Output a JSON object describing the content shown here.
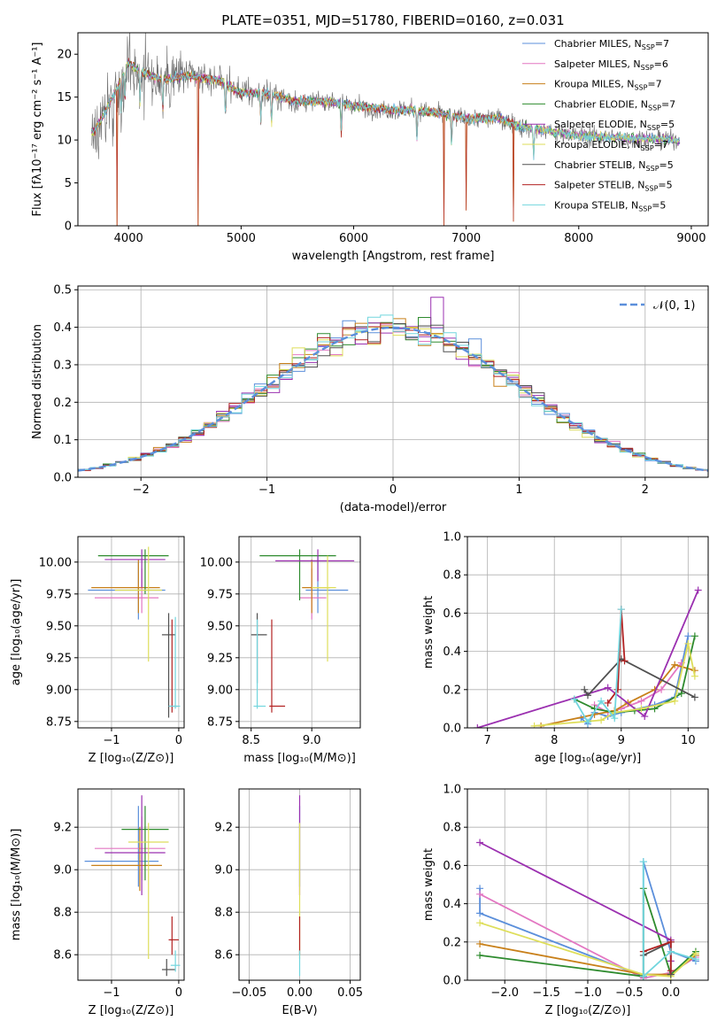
{
  "colors": {
    "series": [
      "#5b8fdb",
      "#e377c2",
      "#c8801a",
      "#2e8b2e",
      "#9b30b0",
      "#dede5a",
      "#505050",
      "#b22222",
      "#72d6de"
    ],
    "gaussian": "#5b8fdb"
  },
  "chart_data": [
    {
      "type": "line",
      "name": "spectrum",
      "title": "PLATE=0351, MJD=51780, FIBERID=0160, z=0.031",
      "xlabel": "wavelength [Angstrom, rest frame]",
      "ylabel": "Flux [fλ10⁻¹⁷ erg cm⁻² s⁻¹ A⁻¹]",
      "xlim": [
        3550,
        9150
      ],
      "ylim": [
        0,
        22.5
      ],
      "xticks": [
        4000,
        5000,
        6000,
        7000,
        8000,
        9000
      ],
      "yticks": [
        0,
        5,
        10,
        15,
        20
      ],
      "grid": false,
      "legend_position": "top-right",
      "legend": [
        {
          "label": "Chabrier MILES, N",
          "sub": "SSP",
          "suffix": "=7"
        },
        {
          "label": "Salpeter MILES, N",
          "sub": "SSP",
          "suffix": "=6"
        },
        {
          "label": "Kroupa MILES, N",
          "sub": "SSP",
          "suffix": "=7"
        },
        {
          "label": "Chabrier ELODIE, N",
          "sub": "SSP",
          "suffix": "=7"
        },
        {
          "label": "Salpeter ELODIE, N",
          "sub": "SSP",
          "suffix": "=5"
        },
        {
          "label": "Kroupa ELODIE, N",
          "sub": "SSP",
          "suffix": "=7"
        },
        {
          "label": "Chabrier STELIB, N",
          "sub": "SSP",
          "suffix": "=5"
        },
        {
          "label": "Salpeter STELIB, N",
          "sub": "SSP",
          "suffix": "=5"
        },
        {
          "label": "Kroupa STELIB, N",
          "sub": "SSP",
          "suffix": "=5"
        }
      ],
      "continuum": [
        [
          3700,
          11.0
        ],
        [
          3800,
          13.5
        ],
        [
          3900,
          16.0
        ],
        [
          4000,
          19.0
        ],
        [
          4100,
          18.0
        ],
        [
          4300,
          17.0
        ],
        [
          4500,
          17.5
        ],
        [
          4800,
          17.0
        ],
        [
          5000,
          15.5
        ],
        [
          5200,
          15.5
        ],
        [
          5500,
          14.5
        ],
        [
          5800,
          14.5
        ],
        [
          6000,
          14.0
        ],
        [
          6300,
          13.5
        ],
        [
          6560,
          13.5
        ],
        [
          6800,
          13.0
        ],
        [
          7000,
          12.5
        ],
        [
          7300,
          12.5
        ],
        [
          7500,
          11.5
        ],
        [
          8000,
          10.5
        ],
        [
          8500,
          10.2
        ],
        [
          8900,
          10.0
        ]
      ],
      "absorption_features": [
        3934,
        3968,
        4102,
        4304,
        4861,
        5175,
        5270,
        5890,
        6563,
        6870,
        7600
      ],
      "deep_drops": [
        [
          3900,
          0
        ],
        [
          4620,
          0
        ],
        [
          6800,
          0
        ],
        [
          7000,
          1.8
        ],
        [
          7420,
          0.5
        ]
      ]
    },
    {
      "type": "histogram",
      "name": "residuals",
      "xlabel": "(data-model)/error",
      "ylabel": "Normed distribution",
      "xlim": [
        -2.5,
        2.5
      ],
      "ylim": [
        0,
        0.51
      ],
      "xticks": [
        -2,
        -1,
        0,
        1,
        2
      ],
      "yticks": [
        0.0,
        0.1,
        0.2,
        0.3,
        0.4,
        0.5
      ],
      "grid": true,
      "legend_position": "top-right",
      "gaussian_label": "𝒩(0, 1)",
      "bin_width": 0.1,
      "bins_start": -2.5
    },
    {
      "type": "scatter",
      "name": "age-vs-Z",
      "xlabel": "Z [log₁₀(Z/Z⊙)]",
      "ylabel": "age  [log₁₀(age/yr)]",
      "xlim": [
        -1.5,
        0.08
      ],
      "ylim": [
        8.7,
        10.2
      ],
      "xticks": [
        -1,
        0
      ],
      "yticks": [
        8.75,
        9.0,
        9.25,
        9.5,
        9.75,
        10.0
      ],
      "grid": true,
      "points": [
        {
          "s": 0,
          "x": -0.6,
          "y": 9.78,
          "xe": [
            -1.35,
            -0.2
          ],
          "ye": [
            9.55,
            10.0
          ]
        },
        {
          "s": 1,
          "x": -0.55,
          "y": 9.72,
          "xe": [
            -1.25,
            -0.3
          ],
          "ye": [
            9.6,
            9.95
          ]
        },
        {
          "s": 2,
          "x": -0.6,
          "y": 9.8,
          "xe": [
            -1.3,
            -0.28
          ],
          "ye": [
            9.6,
            10.02
          ]
        },
        {
          "s": 3,
          "x": -0.5,
          "y": 10.05,
          "xe": [
            -1.2,
            -0.15
          ],
          "ye": [
            9.75,
            10.1
          ]
        },
        {
          "s": 4,
          "x": -0.55,
          "y": 10.02,
          "xe": [
            -1.1,
            -0.2
          ],
          "ye": [
            9.8,
            10.1
          ]
        },
        {
          "s": 5,
          "x": -0.45,
          "y": 9.78,
          "xe": [
            -0.95,
            -0.25
          ],
          "ye": [
            9.22,
            10.12
          ]
        },
        {
          "s": 6,
          "x": -0.15,
          "y": 9.43,
          "xe": [
            -0.25,
            -0.05
          ],
          "ye": [
            8.78,
            9.6
          ]
        },
        {
          "s": 7,
          "x": -0.1,
          "y": 8.87,
          "xe": [
            -0.15,
            -0.02
          ],
          "ye": [
            8.82,
            9.55
          ]
        },
        {
          "s": 8,
          "x": -0.05,
          "y": 8.87,
          "xe": [
            -0.15,
            0.02
          ],
          "ye": [
            8.85,
            9.57
          ]
        }
      ]
    },
    {
      "type": "scatter",
      "name": "age-vs-mass",
      "xlabel": "mass [log₁₀(M/M⊙)]",
      "ylabel": "",
      "xlim": [
        8.4,
        9.4
      ],
      "ylim": [
        8.7,
        10.2
      ],
      "xticks": [
        8.5,
        9.0
      ],
      "yticks": [
        8.75,
        9.0,
        9.25,
        9.5,
        9.75,
        10.0
      ],
      "grid": true,
      "points": [
        {
          "s": 0,
          "x": 9.05,
          "y": 9.78,
          "xe": [
            8.95,
            9.3
          ],
          "ye": [
            9.6,
            10.05
          ]
        },
        {
          "s": 1,
          "x": 9.0,
          "y": 9.72,
          "xe": [
            8.9,
            9.12
          ],
          "ye": [
            9.55,
            9.95
          ]
        },
        {
          "s": 2,
          "x": 9.0,
          "y": 9.8,
          "xe": [
            8.92,
            9.15
          ],
          "ye": [
            9.6,
            10.02
          ]
        },
        {
          "s": 3,
          "x": 8.9,
          "y": 10.05,
          "xe": [
            8.57,
            9.2
          ],
          "ye": [
            9.7,
            10.1
          ]
        },
        {
          "s": 4,
          "x": 9.05,
          "y": 10.01,
          "xe": [
            8.7,
            9.35
          ],
          "ye": [
            9.85,
            10.1
          ]
        },
        {
          "s": 5,
          "x": 9.13,
          "y": 9.8,
          "xe": [
            9.0,
            9.2
          ],
          "ye": [
            9.22,
            10.05
          ]
        },
        {
          "s": 6,
          "x": 8.55,
          "y": 9.43,
          "xe": [
            8.5,
            8.63
          ],
          "ye": [
            9.05,
            9.6
          ]
        },
        {
          "s": 7,
          "x": 8.67,
          "y": 8.87,
          "xe": [
            8.65,
            8.78
          ],
          "ye": [
            8.82,
            9.55
          ]
        },
        {
          "s": 8,
          "x": 8.55,
          "y": 8.87,
          "xe": [
            8.52,
            8.62
          ],
          "ye": [
            8.85,
            9.55
          ]
        }
      ]
    },
    {
      "type": "line",
      "name": "mass-weight-vs-age",
      "xlabel": "age  [log₁₀(age/yr)]",
      "ylabel": "mass weight",
      "xlim": [
        6.7,
        10.3
      ],
      "ylim": [
        0,
        1.0
      ],
      "xticks": [
        7,
        8,
        9,
        10
      ],
      "yticks": [
        0.0,
        0.2,
        0.4,
        0.6,
        0.8,
        1.0
      ],
      "grid": true,
      "series": [
        {
          "s": 0,
          "x": [
            8.4,
            8.5,
            8.6,
            8.8,
            9.0,
            9.5,
            9.8,
            10.0
          ],
          "y": [
            0.05,
            0.02,
            0.08,
            0.06,
            0.08,
            0.12,
            0.16,
            0.48
          ]
        },
        {
          "s": 1,
          "x": [
            8.6,
            8.8,
            9.0,
            9.3,
            9.6,
            9.9
          ],
          "y": [
            0.12,
            0.08,
            0.1,
            0.14,
            0.2,
            0.34
          ]
        },
        {
          "s": 2,
          "x": [
            7.8,
            8.6,
            8.9,
            9.1,
            9.5,
            9.8,
            10.1
          ],
          "y": [
            0.01,
            0.07,
            0.09,
            0.13,
            0.2,
            0.33,
            0.3
          ]
        },
        {
          "s": 3,
          "x": [
            8.3,
            8.6,
            8.9,
            9.2,
            9.5,
            9.9,
            10.1
          ],
          "y": [
            0.15,
            0.1,
            0.08,
            0.09,
            0.1,
            0.18,
            0.48
          ]
        },
        {
          "s": 4,
          "x": [
            6.85,
            8.8,
            9.35,
            10.15
          ],
          "y": [
            0.0,
            0.21,
            0.06,
            0.72
          ]
        },
        {
          "s": 5,
          "x": [
            7.7,
            8.7,
            8.9,
            9.3,
            9.8,
            10.0,
            10.1
          ],
          "y": [
            0.01,
            0.04,
            0.08,
            0.1,
            0.14,
            0.44,
            0.27
          ]
        },
        {
          "s": 6,
          "x": [
            8.45,
            8.5,
            9.0,
            10.1
          ],
          "y": [
            0.2,
            0.17,
            0.36,
            0.16
          ]
        },
        {
          "s": 7,
          "x": [
            8.8,
            8.95,
            9.0,
            9.05
          ],
          "y": [
            0.13,
            0.2,
            0.62,
            0.35
          ]
        },
        {
          "s": 8,
          "x": [
            8.3,
            8.5,
            8.7,
            8.9,
            9.0
          ],
          "y": [
            0.15,
            0.03,
            0.14,
            0.05,
            0.62
          ]
        }
      ]
    },
    {
      "type": "scatter",
      "name": "mass-vs-Z",
      "xlabel": "Z [log₁₀(Z/Z⊙)]",
      "ylabel": "mass [log₁₀(M/M⊙)]",
      "xlim": [
        -1.5,
        0.08
      ],
      "ylim": [
        8.48,
        9.38
      ],
      "xticks": [
        -1,
        0
      ],
      "yticks": [
        8.6,
        8.8,
        9.0,
        9.2
      ],
      "grid": true,
      "points": [
        {
          "s": 0,
          "x": -0.6,
          "y": 9.04,
          "xe": [
            -1.4,
            -0.3
          ],
          "ye": [
            8.92,
            9.3
          ]
        },
        {
          "s": 1,
          "x": -0.55,
          "y": 9.1,
          "xe": [
            -1.25,
            -0.2
          ],
          "ye": [
            8.95,
            9.25
          ]
        },
        {
          "s": 2,
          "x": -0.58,
          "y": 9.02,
          "xe": [
            -1.3,
            -0.25
          ],
          "ye": [
            8.9,
            9.2
          ]
        },
        {
          "s": 3,
          "x": -0.5,
          "y": 9.19,
          "xe": [
            -0.85,
            -0.15
          ],
          "ye": [
            8.95,
            9.3
          ]
        },
        {
          "s": 4,
          "x": -0.55,
          "y": 9.08,
          "xe": [
            -1.1,
            -0.2
          ],
          "ye": [
            8.88,
            9.35
          ]
        },
        {
          "s": 5,
          "x": -0.45,
          "y": 9.13,
          "xe": [
            -0.75,
            -0.15
          ],
          "ye": [
            8.58,
            9.22
          ]
        },
        {
          "s": 6,
          "x": -0.18,
          "y": 8.53,
          "xe": [
            -0.25,
            -0.05
          ],
          "ye": [
            8.5,
            8.58
          ]
        },
        {
          "s": 7,
          "x": -0.1,
          "y": 8.67,
          "xe": [
            -0.15,
            0.0
          ],
          "ye": [
            8.6,
            8.78
          ]
        },
        {
          "s": 8,
          "x": -0.05,
          "y": 8.55,
          "xe": [
            -0.12,
            0.02
          ],
          "ye": [
            8.52,
            8.62
          ]
        }
      ]
    },
    {
      "type": "scatter",
      "name": "mass-vs-EBV",
      "xlabel": "E(B-V)",
      "ylabel": "",
      "xlim": [
        -0.06,
        0.06
      ],
      "ylim": [
        8.48,
        9.38
      ],
      "xticks": [
        -0.05,
        0.0,
        0.05
      ],
      "yticks": [
        8.6,
        8.8,
        9.0,
        9.2
      ],
      "grid": true,
      "points": [
        {
          "s": 0,
          "x": 0,
          "y": 9.04,
          "xe": [
            0,
            0
          ],
          "ye": [
            8.92,
            9.3
          ]
        },
        {
          "s": 4,
          "x": 0,
          "y": 9.08,
          "xe": [
            0,
            0
          ],
          "ye": [
            8.88,
            9.35
          ]
        },
        {
          "s": 5,
          "x": 0,
          "y": 9.13,
          "xe": [
            0,
            0
          ],
          "ye": [
            8.58,
            9.22
          ]
        },
        {
          "s": 7,
          "x": 0,
          "y": 8.67,
          "xe": [
            0,
            0
          ],
          "ye": [
            8.6,
            8.78
          ]
        },
        {
          "s": 8,
          "x": 0,
          "y": 8.55,
          "xe": [
            0,
            0
          ],
          "ye": [
            8.5,
            8.62
          ]
        }
      ]
    },
    {
      "type": "line",
      "name": "mass-weight-vs-Z",
      "xlabel": "Z [log₁₀(Z/Z⊙)]",
      "ylabel": "mass weight",
      "xlim": [
        -2.45,
        0.45
      ],
      "ylim": [
        0,
        1.0
      ],
      "xticks": [
        -2.0,
        -1.5,
        -1.0,
        -0.5,
        0.0
      ],
      "yticks": [
        0.0,
        0.2,
        0.4,
        0.6,
        0.8,
        1.0
      ],
      "grid": true,
      "series": [
        {
          "s": 0,
          "x": [
            -2.3,
            -2.3,
            -0.33,
            -0.33,
            0.0,
            0.3
          ],
          "y": [
            0.48,
            0.35,
            0.02,
            0.62,
            0.15,
            0.1
          ]
        },
        {
          "s": 1,
          "x": [
            -2.3,
            -0.33,
            0.0,
            0.3
          ],
          "y": [
            0.45,
            0.01,
            0.04,
            0.12
          ]
        },
        {
          "s": 2,
          "x": [
            -2.3,
            -0.33,
            0.0,
            0.3
          ],
          "y": [
            0.19,
            0.03,
            0.03,
            0.13
          ]
        },
        {
          "s": 3,
          "x": [
            -2.3,
            -0.33,
            -0.33,
            0.0,
            0.3
          ],
          "y": [
            0.13,
            0.02,
            0.48,
            0.03,
            0.15
          ]
        },
        {
          "s": 4,
          "x": [
            -2.3,
            -0.0,
            -0.0
          ],
          "y": [
            0.72,
            0.21,
            0.1
          ]
        },
        {
          "s": 5,
          "x": [
            -2.3,
            -0.33,
            0.0,
            0.3
          ],
          "y": [
            0.3,
            0.03,
            0.02,
            0.14
          ]
        },
        {
          "s": 6,
          "x": [
            -0.33,
            0.0,
            0.0
          ],
          "y": [
            0.13,
            0.2,
            0.03
          ]
        },
        {
          "s": 7,
          "x": [
            -0.33,
            0.0,
            0.0
          ],
          "y": [
            0.15,
            0.2,
            0.05
          ]
        },
        {
          "s": 8,
          "x": [
            -0.33,
            -0.33,
            0.0,
            0.3
          ],
          "y": [
            0.62,
            0.02,
            0.15,
            0.11
          ]
        }
      ]
    }
  ]
}
